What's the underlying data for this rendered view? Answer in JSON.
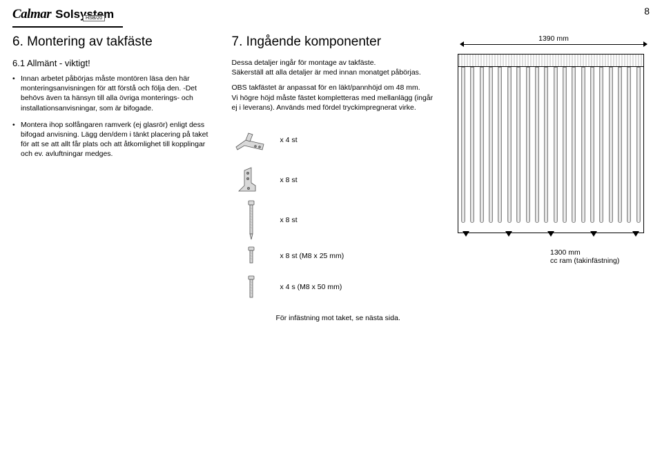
{
  "header": {
    "brand1": "Calmar",
    "brand2": "Solsystem",
    "badge": "HSB/20"
  },
  "page_number": "8",
  "left": {
    "title": "6. Montering av takfäste",
    "subtitle": "6.1 Allmänt - viktigt!",
    "bullets": [
      "Innan arbetet påbörjas måste montören läsa den här monteringsanvisningen för att förstå och följa den. -Det behövs även ta hänsyn till alla övriga monterings- och installationsanvisningar, som är bifogade.",
      "Montera ihop solfångaren ramverk (ej glasrör) enligt dess bifogad anvisning. Lägg den/dem i tänkt placering på taket för att se att allt får plats och att åtkomlighet till kopplingar och ev. avluftningar medges."
    ]
  },
  "mid": {
    "title": "7. Ingående komponenter",
    "intro": [
      "Dessa detaljer ingår för montage av takfäste.\nSäkerställ att alla detaljer är med innan monatget påbörjas.",
      "OBS takfästet är anpassat för en läkt/pannhöjd om 48 mm.\nVi högre höjd måste fästet kompletteras med mellanlägg (ingår ej i leverans). Används med fördel tryckimpregnerat virke."
    ],
    "components": [
      {
        "label": "x 4 st"
      },
      {
        "label": "x 8 st"
      },
      {
        "label": "x 8 st"
      },
      {
        "label": "x 8 st (M8 x 25 mm)"
      },
      {
        "label": "x 4 s (M8 x 50 mm)"
      }
    ],
    "footnote": "För infästning mot taket, se nästa sida."
  },
  "right": {
    "width_label": "1390 mm",
    "height_label_1": "1300 mm",
    "height_label_2": "cc ram (takinfästning)",
    "tube_count": 20
  },
  "colors": {
    "text": "#000000",
    "bg": "#ffffff",
    "metal": "#bbbbbb"
  }
}
